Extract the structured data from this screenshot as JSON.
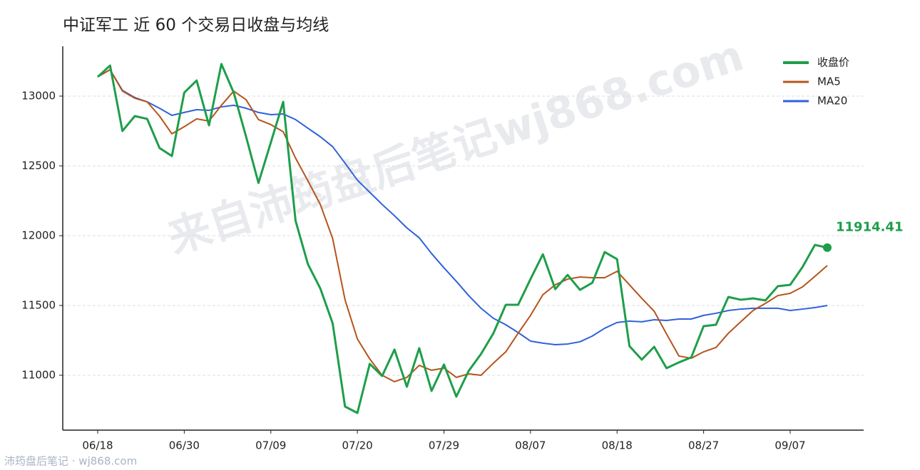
{
  "chart_data": {
    "type": "line",
    "title": "中证军工 近 60 个交易日收盘与均线",
    "watermark": "来自沛筠盘后笔记wj868.com",
    "footer": "沛筠盘后笔记 · wj868.com",
    "categories": [
      "06/18",
      null,
      null,
      null,
      null,
      null,
      null,
      "06/30",
      null,
      null,
      null,
      null,
      null,
      null,
      "07/09",
      null,
      null,
      null,
      null,
      null,
      null,
      "07/20",
      null,
      null,
      null,
      null,
      null,
      null,
      "07/29",
      null,
      null,
      null,
      null,
      null,
      null,
      "08/07",
      null,
      null,
      null,
      null,
      null,
      null,
      "08/18",
      null,
      null,
      null,
      null,
      null,
      null,
      "08/27",
      null,
      null,
      null,
      null,
      null,
      null,
      "09/07",
      null,
      null,
      null
    ],
    "series": [
      {
        "name": "收盘价",
        "color": "#1e9e4a",
        "width": 3,
        "values": [
          13138,
          13219,
          12750,
          12857,
          12837,
          12628,
          12571,
          13025,
          13112,
          12791,
          13230,
          13025,
          12709,
          12378,
          12668,
          12959,
          12107,
          11796,
          11622,
          11372,
          10776,
          10730,
          11082,
          10995,
          11184,
          10918,
          11194,
          10888,
          11077,
          10847,
          11031,
          11153,
          11301,
          11505,
          11505,
          11689,
          11867,
          11617,
          11719,
          11612,
          11663,
          11883,
          11832,
          11209,
          11112,
          11204,
          11051,
          11092,
          11128,
          11352,
          11362,
          11561,
          11541,
          11551,
          11536,
          11638,
          11648,
          11776,
          11934,
          11914.41
        ]
      },
      {
        "name": "MA5",
        "color": "#b5541b",
        "width": 2,
        "values": [
          13138,
          13189,
          13036,
          12985,
          12959,
          12857,
          12730,
          12781,
          12837,
          12821,
          12934,
          13036,
          12974,
          12832,
          12796,
          12745,
          12556,
          12393,
          12224,
          11980,
          11541,
          11260,
          11117,
          11000,
          10954,
          10985,
          11071,
          11036,
          11051,
          10985,
          11010,
          11000,
          11087,
          11168,
          11301,
          11429,
          11577,
          11648,
          11689,
          11704,
          11699,
          11699,
          11745,
          11648,
          11551,
          11459,
          11296,
          11138,
          11122,
          11168,
          11199,
          11301,
          11383,
          11464,
          11515,
          11571,
          11587,
          11633,
          11709,
          11786
        ]
      },
      {
        "name": "MA20",
        "color": "#2f62d9",
        "width": 2,
        "values": [
          13138,
          13189,
          13041,
          12990,
          12959,
          12913,
          12862,
          12883,
          12903,
          12898,
          12923,
          12934,
          12913,
          12883,
          12867,
          12872,
          12832,
          12770,
          12709,
          12638,
          12520,
          12398,
          12311,
          12224,
          12143,
          12056,
          11985,
          11872,
          11770,
          11673,
          11571,
          11480,
          11408,
          11362,
          11306,
          11245,
          11230,
          11219,
          11224,
          11240,
          11281,
          11337,
          11378,
          11388,
          11383,
          11398,
          11393,
          11403,
          11403,
          11429,
          11444,
          11464,
          11474,
          11480,
          11480,
          11480,
          11464,
          11474,
          11485,
          11500
        ]
      }
    ],
    "ylim": [
      10607,
      13357
    ],
    "yticks": [
      11000,
      11500,
      12000,
      12500,
      13000
    ],
    "grid": true,
    "legend": "upper right"
  }
}
